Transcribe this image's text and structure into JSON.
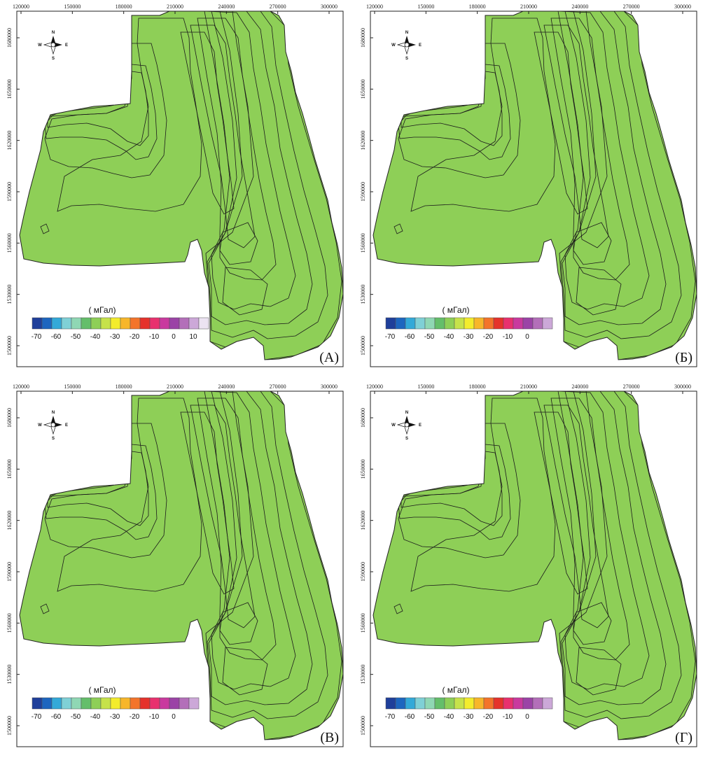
{
  "colors": {
    "palette": [
      "#1f3f9a",
      "#1d66bf",
      "#33a9d8",
      "#7fd0d6",
      "#8fd7b4",
      "#64be6a",
      "#8ecf57",
      "#c6e24a",
      "#f3ec2c",
      "#f7b62a",
      "#f3742a",
      "#e5322b",
      "#e8306e",
      "#c9399e",
      "#9b43a6",
      "#b36fb9",
      "#cca8d8",
      "#ece3f2"
    ],
    "outline": "#222222",
    "background": "#ffffff"
  },
  "icons": {
    "compass": "compass-rose-icon"
  },
  "compass": {
    "n": "N",
    "s": "S",
    "w": "W",
    "e": "E"
  },
  "x_ticks": [
    "120000",
    "150000",
    "180000",
    "210000",
    "240000",
    "270000",
    "300000"
  ],
  "y_ticks": [
    "1680000",
    "1650000",
    "1620000",
    "1590000",
    "1560000",
    "1530000",
    "1500000"
  ],
  "colorbar_unit": "( мГал)",
  "panels": [
    {
      "id": "A",
      "label": "(A)",
      "colorbar_ticks": [
        "-70",
        "-60",
        "-50",
        "-40",
        "-30",
        "-20",
        "-10",
        "0",
        "10"
      ],
      "n_boxes": 18
    },
    {
      "id": "B",
      "label": "(Б)",
      "colorbar_ticks": [
        "-70",
        "-60",
        "-50",
        "-40",
        "-30",
        "-20",
        "-10",
        "0"
      ],
      "n_boxes": 17
    },
    {
      "id": "V",
      "label": "(В)",
      "colorbar_ticks": [
        "-70",
        "-60",
        "-50",
        "-40",
        "-30",
        "-20",
        "-10",
        "0"
      ],
      "n_boxes": 17
    },
    {
      "id": "G",
      "label": "(Г)",
      "colorbar_ticks": [
        "-70",
        "-60",
        "-50",
        "-40",
        "-30",
        "-20",
        "-10",
        "0"
      ],
      "n_boxes": 17
    }
  ]
}
